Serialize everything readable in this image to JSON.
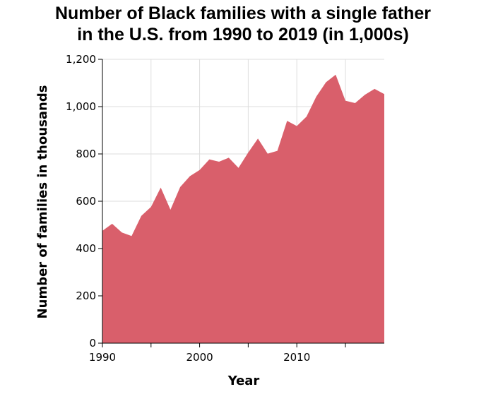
{
  "chart_data": {
    "type": "area",
    "title_line1": "Number of Black families with a single father",
    "title_line2": "in the U.S. from 1990 to 2019 (in 1,000s)",
    "xlabel": "Year",
    "ylabel": "Number of families in thousands",
    "xlim": [
      1990,
      2019
    ],
    "ylim": [
      0,
      1200
    ],
    "x_ticks": [
      1990,
      1995,
      2000,
      2005,
      2010,
      2015
    ],
    "x_tick_labels": [
      "1990",
      "",
      "2000",
      "",
      "2010",
      ""
    ],
    "y_ticks": [
      0,
      200,
      400,
      600,
      800,
      1000,
      1200
    ],
    "y_tick_labels": [
      "0",
      "200",
      "400",
      "600",
      "800",
      "1,000",
      "1,200"
    ],
    "grid": true,
    "fill_color": "#d95f6b",
    "series": [
      {
        "x": [
          1990,
          1991,
          1992,
          1993,
          1994,
          1995,
          1996,
          1997,
          1998,
          1999,
          2000,
          2001,
          2002,
          2003,
          2004,
          2005,
          2006,
          2007,
          2008,
          2009,
          2010,
          2011,
          2012,
          2013,
          2014,
          2015,
          2016,
          2017,
          2018,
          2019
        ],
        "values": [
          475,
          505,
          468,
          453,
          538,
          576,
          658,
          564,
          660,
          706,
          732,
          777,
          767,
          784,
          741,
          806,
          865,
          801,
          813,
          940,
          918,
          958,
          1042,
          1103,
          1135,
          1025,
          1015,
          1050,
          1075,
          1053
        ]
      }
    ]
  }
}
